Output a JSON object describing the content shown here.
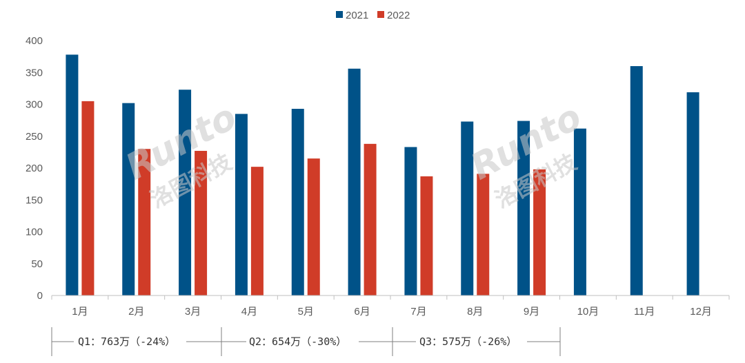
{
  "chart_data": {
    "type": "bar",
    "categories": [
      "1月",
      "2月",
      "3月",
      "4月",
      "5月",
      "6月",
      "7月",
      "8月",
      "9月",
      "10月",
      "11月",
      "12月"
    ],
    "series": [
      {
        "name": "2021",
        "color": "#005288",
        "values": [
          378,
          302,
          323,
          285,
          293,
          356,
          233,
          273,
          274,
          262,
          360,
          319
        ]
      },
      {
        "name": "2022",
        "color": "#d03c28",
        "values": [
          305,
          230,
          227,
          202,
          215,
          238,
          187,
          191,
          198,
          null,
          null,
          null
        ]
      }
    ],
    "ylim": [
      0,
      400
    ],
    "yticks": [
      0,
      50,
      100,
      150,
      200,
      250,
      300,
      350,
      400
    ],
    "grid": false,
    "legend": "top-center"
  },
  "quarters": [
    {
      "label": "Q1：763万（-24%）"
    },
    {
      "label": "Q2：654万（-30%）"
    },
    {
      "label": "Q3：575万（-26%）"
    }
  ],
  "watermark": {
    "brand": "Runto",
    "cn": "洛图科技"
  }
}
